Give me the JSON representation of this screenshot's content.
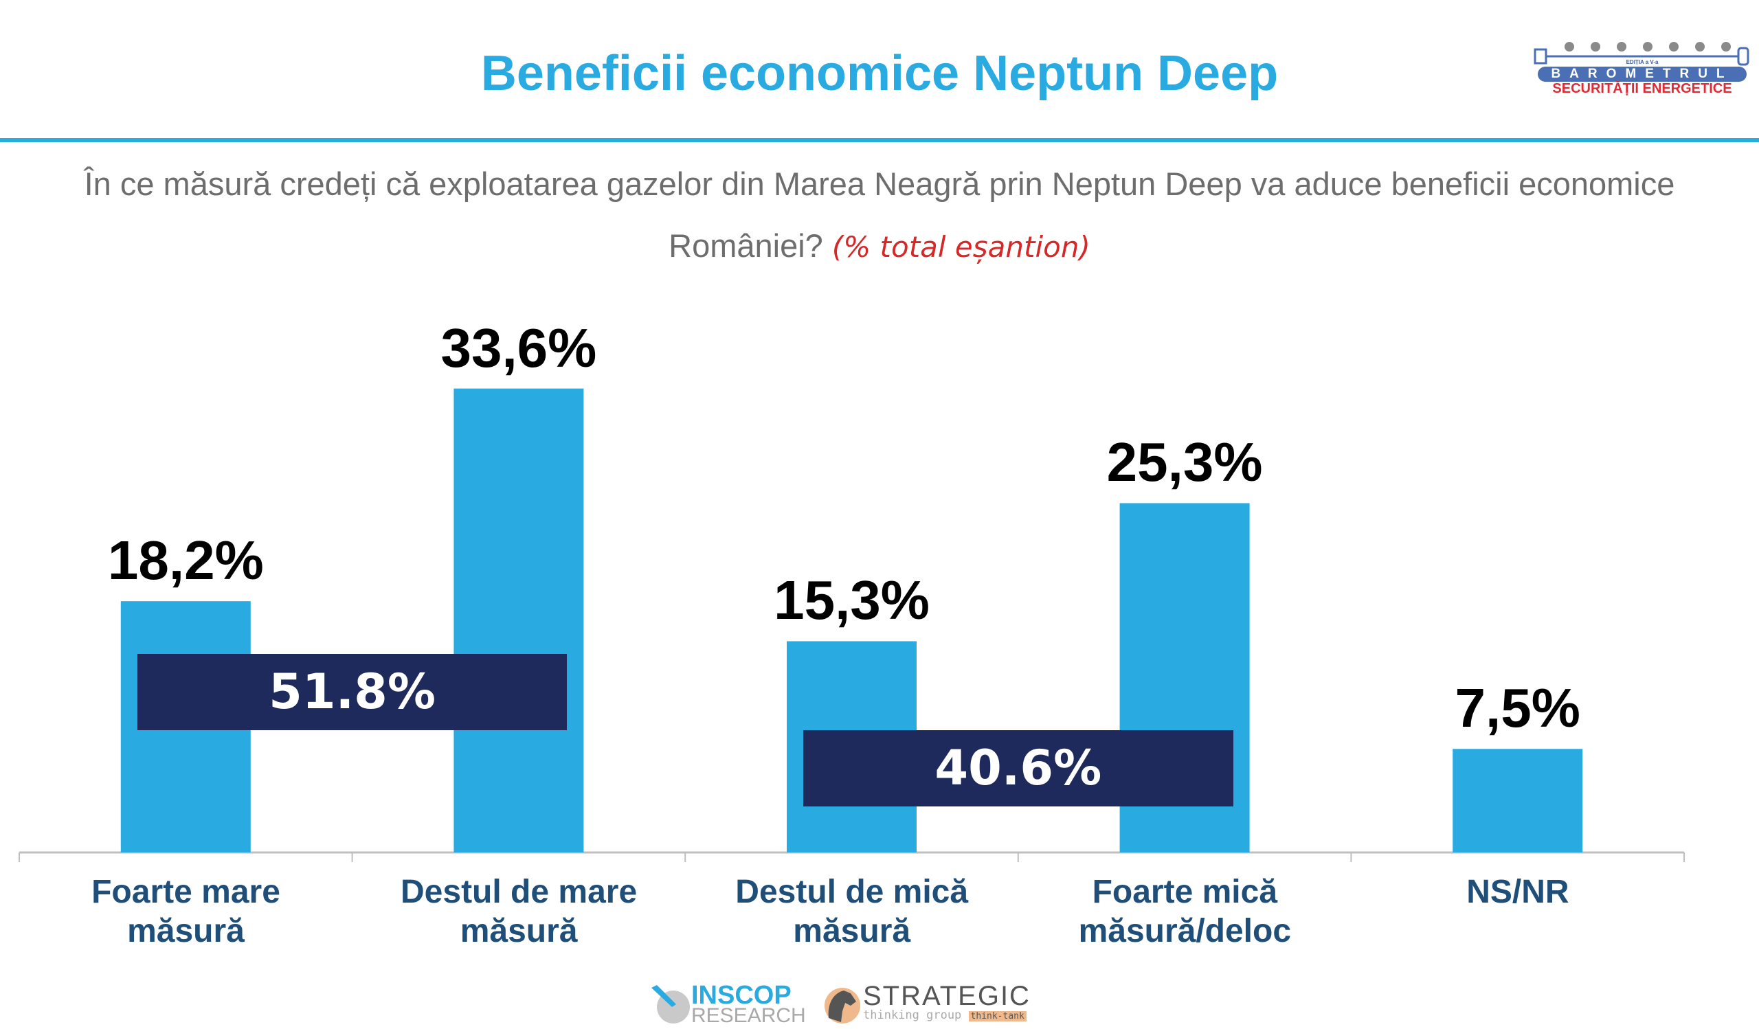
{
  "header": {
    "title": "Beneficii economice Neptun Deep",
    "question_line1": "În ce măsură credeți că exploatarea gazelor din Marea Neagră prin Neptun Deep va aduce beneficii economice",
    "question_line2": "României?",
    "question_note": "(% total eșantion)"
  },
  "logo_barometru": {
    "edition": "EDIȚIA a V-a",
    "name": "BAROMETRUL",
    "subtitle": "SECURITĂȚII ENERGETICE"
  },
  "footer": {
    "inscop_top": "INSCOP",
    "inscop_bottom": "RESEARCH",
    "strategic_top": "STRATEGIC",
    "strategic_bottom": "thinking group",
    "strategic_tag": "think-tank"
  },
  "colors": {
    "bar": "#29abe2",
    "box": "#1f2a5c",
    "title": "#29abe2",
    "category": "#1f4e79"
  },
  "chart_data": {
    "type": "bar",
    "title": "Beneficii economice Neptun Deep",
    "xlabel": "",
    "ylabel": "",
    "ylim": [
      0,
      40
    ],
    "grid": false,
    "categories": [
      "Foarte mare măsură",
      "Destul de mare măsură",
      "Destul de mică măsură",
      "Foarte mică măsură/deloc",
      "NS/NR"
    ],
    "category_lines": [
      [
        "Foarte mare",
        "măsură"
      ],
      [
        "Destul de mare",
        "măsură"
      ],
      [
        "Destul de mică",
        "măsură"
      ],
      [
        "Foarte mică",
        "măsură/deloc"
      ],
      [
        "NS/NR",
        ""
      ]
    ],
    "values": [
      18.2,
      33.6,
      15.3,
      25.3,
      7.5
    ],
    "value_labels": [
      "18,2%",
      "33,6%",
      "15,3%",
      "25,3%",
      "7,5%"
    ],
    "group_totals": [
      {
        "label": "51.8%",
        "value": 51.8,
        "categories": [
          0,
          1
        ]
      },
      {
        "label": "40.6%",
        "value": 40.6,
        "categories": [
          2,
          3
        ]
      }
    ]
  }
}
